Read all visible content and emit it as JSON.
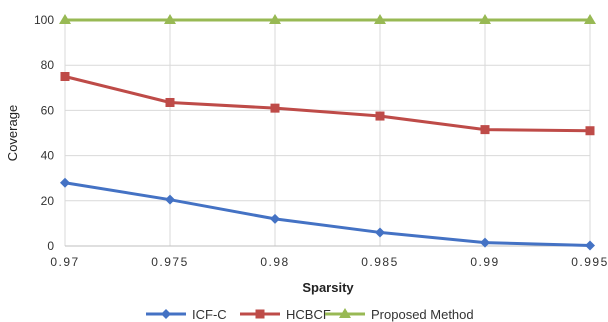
{
  "chart_data": {
    "type": "line",
    "title": "",
    "xlabel": "Sparsity",
    "ylabel": "Coverage",
    "x": [
      0.97,
      0.975,
      0.98,
      0.985,
      0.99,
      0.995
    ],
    "x_tick_labels": [
      "0.97",
      "0.975",
      "0.98",
      "0.985",
      "0.99",
      "0.995"
    ],
    "y_ticks": [
      0,
      20,
      40,
      60,
      80,
      100
    ],
    "ylim": [
      0,
      100
    ],
    "grid": true,
    "legend_position": "bottom",
    "series": [
      {
        "name": "ICF-C",
        "values": [
          28,
          20.5,
          12,
          6,
          1.5,
          0.2
        ],
        "color": "#4472c4",
        "marker": "diamond"
      },
      {
        "name": "HCBCF",
        "values": [
          75,
          63.5,
          61,
          57.5,
          51.5,
          51
        ],
        "color": "#be4b48",
        "marker": "square"
      },
      {
        "name": "Proposed Method",
        "values": [
          100,
          100,
          100,
          100,
          100,
          100
        ],
        "color": "#98b954",
        "marker": "triangle"
      }
    ]
  }
}
